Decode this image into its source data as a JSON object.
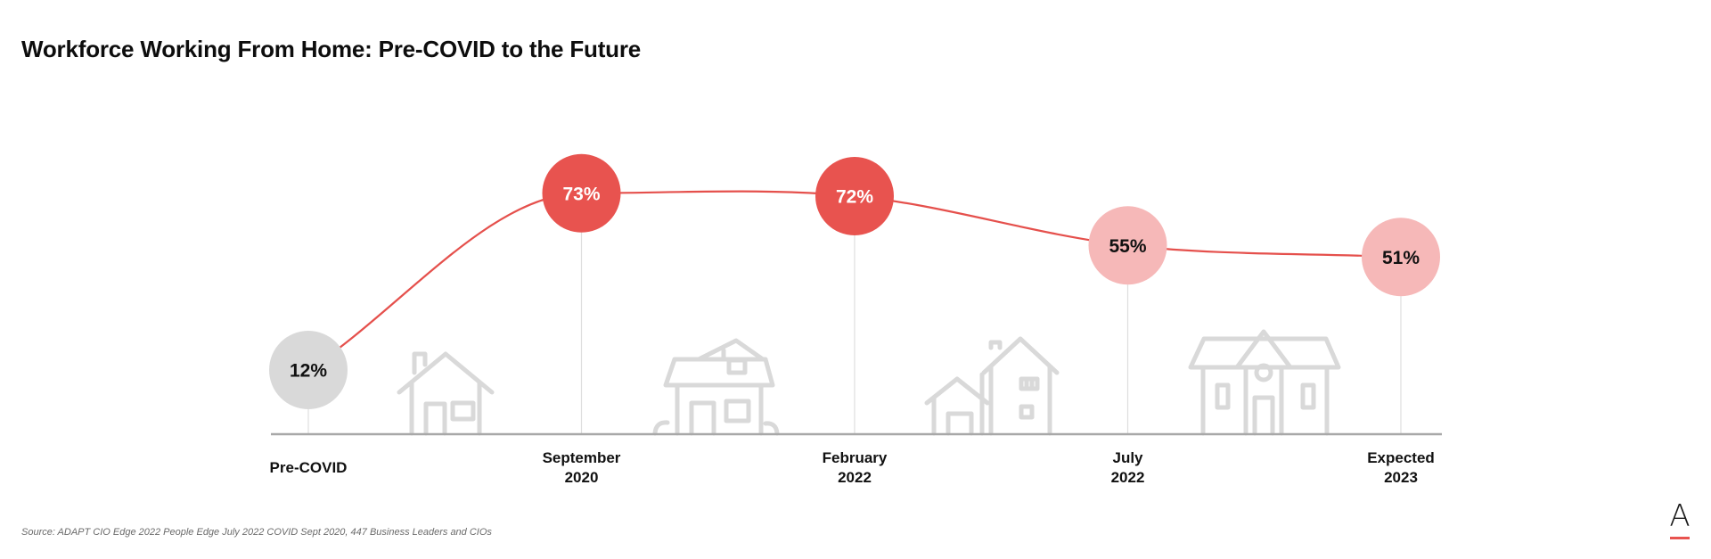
{
  "header": {
    "title": "Workforce Working From Home: Pre-COVID to the Future"
  },
  "footer": {
    "source": "Source: ADAPT CIO Edge 2022 People Edge July 2022 COVID Sept 2020, 447 Business Leaders and CIOs"
  },
  "logo": {
    "letter": "A",
    "accent_color": "#e8534f"
  },
  "colors": {
    "line": "#e5504c",
    "bubble_strong": "#e8534f",
    "bubble_light": "#f6b8b8",
    "bubble_neutral": "#d9d9d9",
    "baseline": "#a8a8a8",
    "house_outline": "#d9d9d9"
  },
  "chart_data": {
    "type": "line",
    "title": "Workforce Working From Home: Pre-COVID to the Future",
    "categories": [
      "Pre-COVID",
      "September 2020",
      "February 2022",
      "July 2022",
      "Expected 2023"
    ],
    "category_lines": [
      [
        "Pre-COVID"
      ],
      [
        "September",
        "2020"
      ],
      [
        "February",
        "2022"
      ],
      [
        "July",
        "2022"
      ],
      [
        "Expected",
        "2023"
      ]
    ],
    "values": [
      12,
      73,
      72,
      55,
      51
    ],
    "value_labels": [
      "12%",
      "73%",
      "72%",
      "55%",
      "51%"
    ],
    "unit": "%",
    "bubble_styles": [
      "neutral",
      "strong",
      "strong",
      "light",
      "light"
    ],
    "grid": false,
    "legend": "none",
    "decorations": [
      "house-icon",
      "house-icon",
      "house-icon",
      "house-icon"
    ]
  }
}
